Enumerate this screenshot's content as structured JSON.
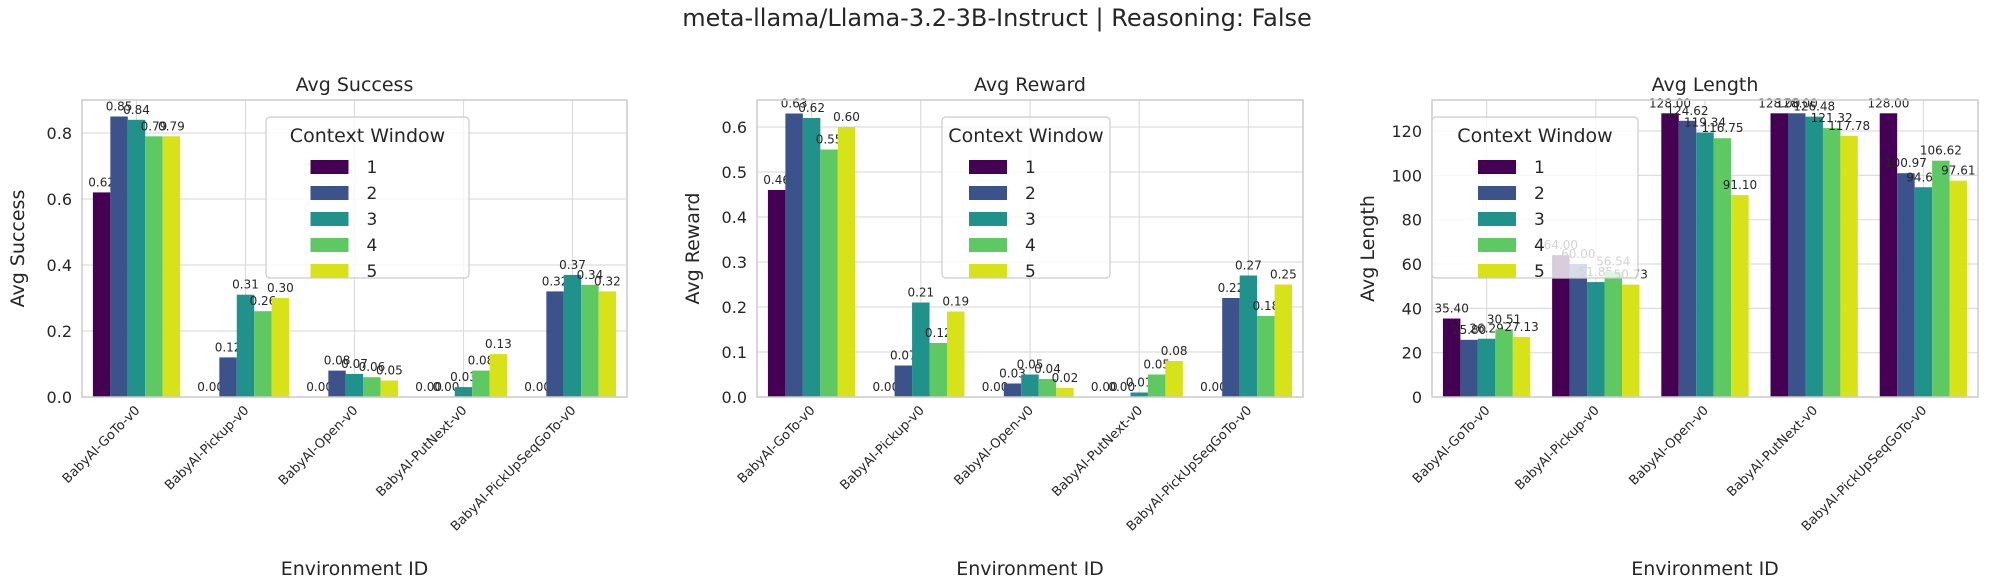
{
  "suptitle": "meta-llama/Llama-3.2-3B-Instruct | Reasoning: False",
  "legend": {
    "title": "Context Window",
    "entries": [
      "1",
      "2",
      "3",
      "4",
      "5"
    ],
    "colors": [
      "#440154",
      "#3b528b",
      "#21918c",
      "#5ec962",
      "#d8e219"
    ]
  },
  "chart_data": [
    {
      "type": "bar",
      "title": "Avg Success",
      "xlabel": "Environment ID",
      "ylabel": "Avg Success",
      "ylim": [
        0,
        0.9
      ],
      "yticks": [
        "0.0",
        "0.2",
        "0.4",
        "0.6",
        "0.8"
      ],
      "ytick_values": [
        0,
        0.2,
        0.4,
        0.6,
        0.8
      ],
      "categories": [
        "BabyAI-GoTo-v0",
        "BabyAI-Pickup-v0",
        "BabyAI-Open-v0",
        "BabyAI-PutNext-v0",
        "BabyAI-PickUpSeqGoTo-v0"
      ],
      "series": [
        {
          "name": "1",
          "values": [
            0.62,
            0.0,
            0.0,
            0.0,
            0.0
          ],
          "labels": [
            "0.62",
            "0.00",
            "0.00",
            "0.00",
            "0.00"
          ]
        },
        {
          "name": "2",
          "values": [
            0.85,
            0.12,
            0.08,
            0.0,
            0.32
          ],
          "labels": [
            "0.85",
            "0.12",
            "0.08",
            "0.00",
            "0.32"
          ]
        },
        {
          "name": "3",
          "values": [
            0.84,
            0.31,
            0.07,
            0.03,
            0.37
          ],
          "labels": [
            "0.84",
            "0.31",
            "0.07",
            "0.03",
            "0.37"
          ]
        },
        {
          "name": "4",
          "values": [
            0.79,
            0.26,
            0.06,
            0.08,
            0.34
          ],
          "labels": [
            "0.79",
            "0.26",
            "0.06",
            "0.08",
            "0.34"
          ]
        },
        {
          "name": "5",
          "values": [
            0.79,
            0.3,
            0.05,
            0.13,
            0.32
          ],
          "labels": [
            "0.79",
            "0.30",
            "0.05",
            "0.13",
            "0.32"
          ]
        }
      ]
    },
    {
      "type": "bar",
      "title": "Avg Reward",
      "xlabel": "Environment ID",
      "ylabel": "Avg Reward",
      "ylim": [
        0,
        0.66
      ],
      "yticks": [
        "0.0",
        "0.1",
        "0.2",
        "0.3",
        "0.4",
        "0.5",
        "0.6"
      ],
      "ytick_values": [
        0,
        0.1,
        0.2,
        0.3,
        0.4,
        0.5,
        0.6
      ],
      "categories": [
        "BabyAI-GoTo-v0",
        "BabyAI-Pickup-v0",
        "BabyAI-Open-v0",
        "BabyAI-PutNext-v0",
        "BabyAI-PickUpSeqGoTo-v0"
      ],
      "series": [
        {
          "name": "1",
          "values": [
            0.46,
            0.0,
            0.0,
            0.0,
            0.0
          ],
          "labels": [
            "0.46",
            "0.00",
            "0.00",
            "0.00",
            "0.00"
          ]
        },
        {
          "name": "2",
          "values": [
            0.63,
            0.07,
            0.03,
            0.0,
            0.22
          ],
          "labels": [
            "0.63",
            "0.07",
            "0.03",
            "0.00",
            "0.22"
          ]
        },
        {
          "name": "3",
          "values": [
            0.62,
            0.21,
            0.05,
            0.01,
            0.27
          ],
          "labels": [
            "0.62",
            "0.21",
            "0.05",
            "0.01",
            "0.27"
          ]
        },
        {
          "name": "4",
          "values": [
            0.55,
            0.12,
            0.04,
            0.05,
            0.18
          ],
          "labels": [
            "0.55",
            "0.12",
            "0.04",
            "0.05",
            "0.18"
          ]
        },
        {
          "name": "5",
          "values": [
            0.6,
            0.19,
            0.02,
            0.08,
            0.25
          ],
          "labels": [
            "0.60",
            "0.19",
            "0.02",
            "0.08",
            "0.25"
          ]
        }
      ]
    },
    {
      "type": "bar",
      "title": "Avg Length",
      "xlabel": "Environment ID",
      "ylabel": "Avg Length",
      "ylim": [
        0,
        134
      ],
      "yticks": [
        "0",
        "20",
        "40",
        "60",
        "80",
        "100",
        "120"
      ],
      "ytick_values": [
        0,
        20,
        40,
        60,
        80,
        100,
        120
      ],
      "categories": [
        "BabyAI-GoTo-v0",
        "BabyAI-Pickup-v0",
        "BabyAI-Open-v0",
        "BabyAI-PutNext-v0",
        "BabyAI-PickUpSeqGoTo-v0"
      ],
      "series": [
        {
          "name": "1",
          "values": [
            35.4,
            64.0,
            128.0,
            128.0,
            128.0
          ],
          "labels": [
            "35.40",
            "64.00",
            "128.00",
            "128.00",
            "128.00"
          ]
        },
        {
          "name": "2",
          "values": [
            25.8,
            60.0,
            124.62,
            128.0,
            100.97
          ],
          "labels": [
            "25.80",
            "60.00",
            "124.62",
            "128.00",
            "100.97"
          ]
        },
        {
          "name": "3",
          "values": [
            26.29,
            51.85,
            119.34,
            126.48,
            94.63
          ],
          "labels": [
            "26.29",
            "51.85",
            "119.34",
            "126.48",
            "94.63"
          ]
        },
        {
          "name": "4",
          "values": [
            30.51,
            56.54,
            116.75,
            121.32,
            106.62
          ],
          "labels": [
            "30.51",
            "56.54",
            "116.75",
            "121.32",
            "106.62"
          ]
        },
        {
          "name": "5",
          "values": [
            27.13,
            50.73,
            91.1,
            117.78,
            97.61
          ],
          "labels": [
            "27.13",
            "50.73",
            "91.10",
            "117.78",
            "97.61"
          ]
        }
      ]
    }
  ]
}
